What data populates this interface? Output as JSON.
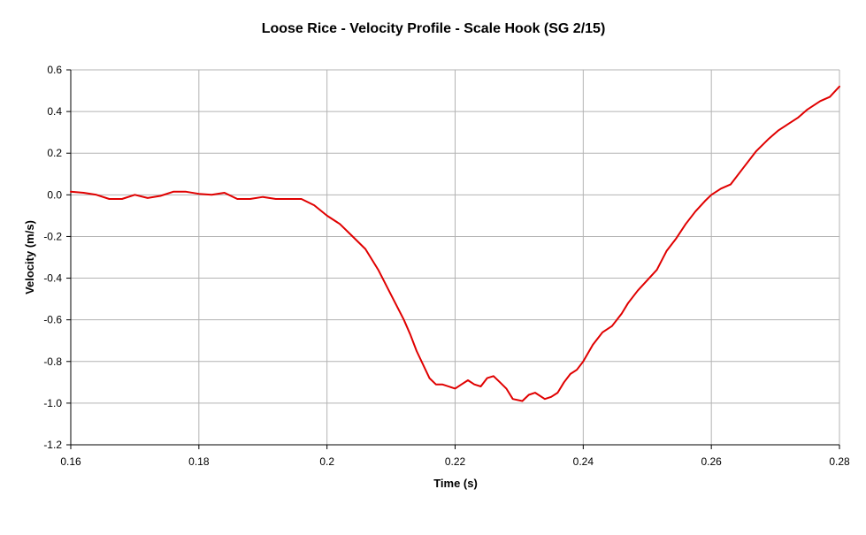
{
  "chart_data": {
    "type": "line",
    "title": "Loose Rice - Velocity Profile - Scale Hook (SG 2/15)",
    "xlabel": "Time (s)",
    "ylabel": "Velocity (m/s)",
    "xlim": [
      0.16,
      0.28
    ],
    "ylim": [
      -1.2,
      0.6
    ],
    "x_ticks": [
      0.16,
      0.18,
      0.2,
      0.22,
      0.24,
      0.26,
      0.28
    ],
    "x_tick_labels": [
      "0.16",
      "0.18",
      "0.2",
      "0.22",
      "0.24",
      "0.26",
      "0.28"
    ],
    "y_ticks": [
      0.6,
      0.4,
      0.2,
      0.0,
      -0.2,
      -0.4,
      -0.6,
      -0.8,
      -1.0,
      -1.2
    ],
    "y_tick_labels": [
      "0.6",
      "0.4",
      "0.2",
      "0.0",
      "-0.2",
      "-0.4",
      "-0.6",
      "-0.8",
      "-1.0",
      "-1.2"
    ],
    "grid": true,
    "legend": "none",
    "colors": {
      "line": "#e00000",
      "grid": "#b3b3b3",
      "axis": "#000000"
    },
    "series": [
      {
        "x": [
          0.16,
          0.162,
          0.164,
          0.166,
          0.168,
          0.17,
          0.172,
          0.174,
          0.176,
          0.178,
          0.18,
          0.182,
          0.184,
          0.186,
          0.188,
          0.19,
          0.192,
          0.194,
          0.196,
          0.198,
          0.2,
          0.202,
          0.204,
          0.206,
          0.208,
          0.21,
          0.212,
          0.213,
          0.214,
          0.216,
          0.217,
          0.218,
          0.22,
          0.221,
          0.222,
          0.223,
          0.224,
          0.225,
          0.226,
          0.227,
          0.228,
          0.229,
          0.2305,
          0.2315,
          0.2325,
          0.234,
          0.235,
          0.236,
          0.237,
          0.238,
          0.239,
          0.24,
          0.2415,
          0.243,
          0.2445,
          0.246,
          0.247,
          0.2485,
          0.25,
          0.2515,
          0.253,
          0.2545,
          0.256,
          0.2575,
          0.259,
          0.26,
          0.2615,
          0.263,
          0.265,
          0.267,
          0.269,
          0.2705,
          0.272,
          0.2735,
          0.275,
          0.277,
          0.2785,
          0.28
        ],
        "y": [
          0.015,
          0.01,
          0.0,
          -0.02,
          -0.02,
          0.0,
          -0.015,
          -0.005,
          0.015,
          0.015,
          0.005,
          0.0,
          0.01,
          -0.02,
          -0.02,
          -0.01,
          -0.02,
          -0.02,
          -0.02,
          -0.05,
          -0.1,
          -0.14,
          -0.2,
          -0.26,
          -0.36,
          -0.48,
          -0.6,
          -0.67,
          -0.75,
          -0.88,
          -0.91,
          -0.91,
          -0.93,
          -0.91,
          -0.89,
          -0.91,
          -0.92,
          -0.88,
          -0.87,
          -0.9,
          -0.93,
          -0.98,
          -0.99,
          -0.96,
          -0.95,
          -0.98,
          -0.97,
          -0.95,
          -0.9,
          -0.86,
          -0.84,
          -0.8,
          -0.72,
          -0.66,
          -0.63,
          -0.57,
          -0.52,
          -0.46,
          -0.41,
          -0.36,
          -0.27,
          -0.21,
          -0.14,
          -0.08,
          -0.03,
          0.0,
          0.03,
          0.05,
          0.13,
          0.21,
          0.27,
          0.31,
          0.34,
          0.37,
          0.41,
          0.45,
          0.47,
          0.52
        ]
      }
    ]
  }
}
